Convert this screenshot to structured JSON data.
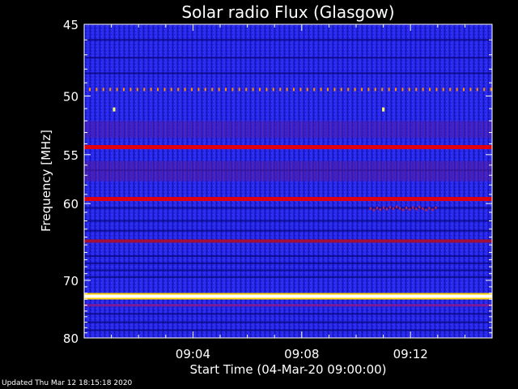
{
  "chart_data": {
    "type": "heatmap",
    "title": "Solar radio Flux (Glasgow)",
    "xlabel": "Start Time (04-Mar-20 09:00:00)",
    "ylabel": "Frequency [MHz]",
    "x_tick_labels": [
      "09:04",
      "09:08",
      "09:12"
    ],
    "x_tick_minutes": [
      4,
      8,
      12
    ],
    "xlim_minutes": [
      0,
      15
    ],
    "y_tick_labels": [
      "45",
      "50",
      "55",
      "60",
      "70",
      "80"
    ],
    "y_ticks": [
      45,
      50,
      55,
      60,
      70,
      80
    ],
    "ylim": [
      45,
      80
    ],
    "y_scale": "reciprocal",
    "colormap": [
      "#000000",
      "#00008b",
      "#2a2aff",
      "#ff0000",
      "#ffff00",
      "#ffffff"
    ],
    "bands": [
      {
        "freq": 49.5,
        "level": "dotted-orange"
      },
      {
        "freq": 54.3,
        "level": "red"
      },
      {
        "freq": 59.5,
        "level": "red"
      },
      {
        "freq": 64.5,
        "level": "dark-red"
      },
      {
        "freq": 72.5,
        "level": "white-yellow"
      },
      {
        "freq": 74.0,
        "level": "purple"
      }
    ],
    "bursts": [
      {
        "minute": 1.1,
        "freq": 51.1
      },
      {
        "minute": 11.0,
        "freq": 51.1
      }
    ],
    "event_cluster": {
      "minute_start": 10.5,
      "minute_end": 13.0,
      "freq": 60.6
    }
  },
  "footer": "Updated Thu Mar 12 18:15:18 2020"
}
